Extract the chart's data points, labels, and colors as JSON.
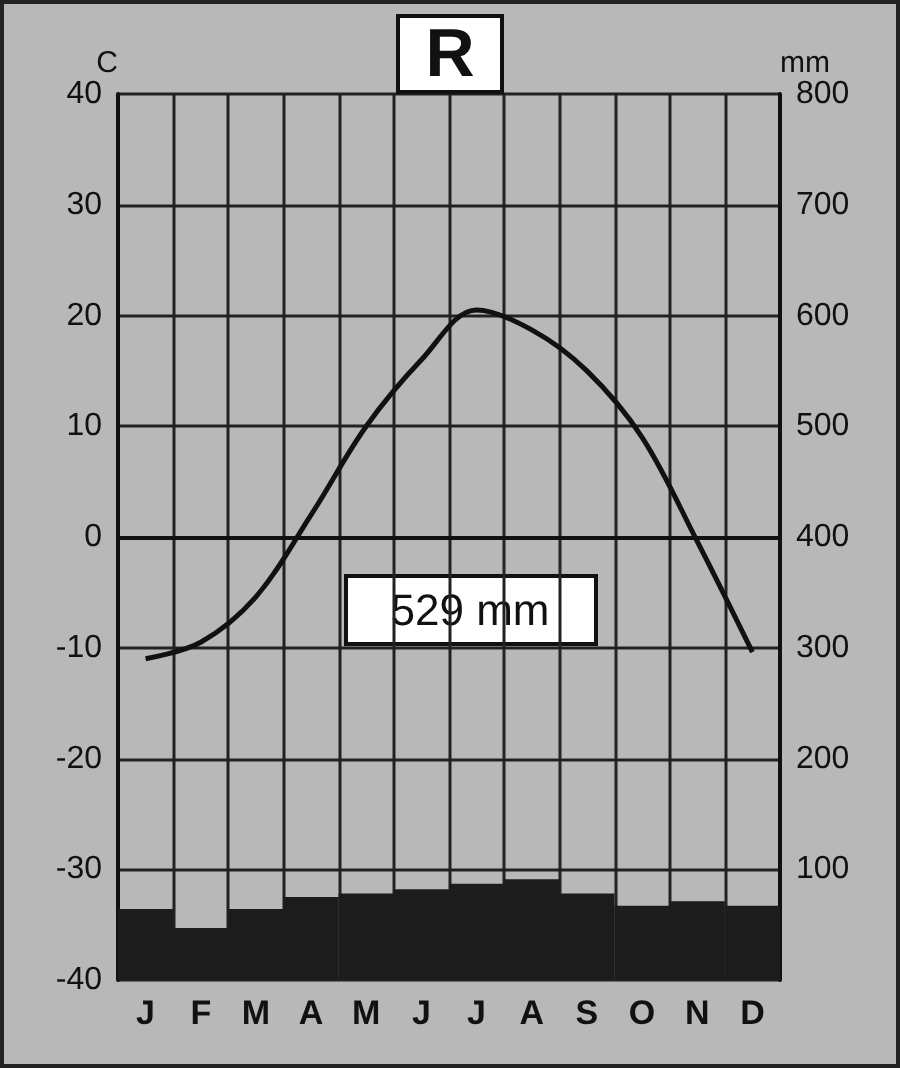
{
  "chart_data": {
    "type": "bar",
    "title": "R",
    "ylabel": "C",
    "y2label": "mm",
    "annotations": [
      "529 mm"
    ],
    "categories": [
      "J",
      "F",
      "M",
      "A",
      "M",
      "J",
      "J",
      "A",
      "S",
      "O",
      "N",
      "D"
    ],
    "series": [
      {
        "axis": "y2",
        "color": "#1c1c1c",
        "values": [
          64,
          47,
          64,
          75,
          78,
          82,
          87,
          91,
          78,
          67,
          71,
          67
        ]
      },
      {
        "type": "line",
        "axis": "y",
        "color": "#111111",
        "values": [
          -11,
          -9.5,
          -5.4,
          2,
          10,
          16,
          20.5,
          18.7,
          15,
          9,
          -0.4,
          -10.4
        ]
      }
    ],
    "ylim": [
      -40,
      40
    ],
    "yticks": [
      -40,
      -30,
      -20,
      -10,
      0,
      10,
      20,
      30,
      40
    ],
    "y2lim": [
      0,
      800
    ],
    "y2ticks": [
      100,
      200,
      300,
      400,
      500,
      600,
      700,
      800
    ],
    "grid": true,
    "marker": "none",
    "line_style": "solid"
  }
}
